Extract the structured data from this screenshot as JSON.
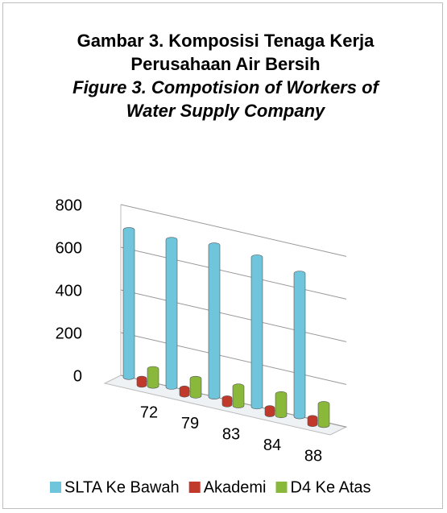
{
  "chart_data": {
    "type": "bar3d",
    "title": "Gambar 3. Komposisi Tenaga Kerja Perusahaan Air Bersih",
    "subtitle": "Figure 3. Compotision of Workers of Water Supply Company",
    "categories": [
      "72",
      "79",
      "83",
      "84",
      "88"
    ],
    "series": [
      {
        "name": "SLTA Ke Bawah",
        "color": "#6ec5dc",
        "values": [
          690,
          690,
          710,
          700,
          670
        ]
      },
      {
        "name": "Akademi",
        "color": "#c0392b",
        "values": [
          30,
          30,
          30,
          30,
          30
        ]
      },
      {
        "name": "D4 Ke Atas",
        "color": "#8ab83a",
        "values": [
          80,
          80,
          90,
          100,
          100
        ]
      }
    ],
    "ylim": [
      0,
      800
    ],
    "yticks": [
      0,
      200,
      400,
      600,
      800
    ],
    "grid": true,
    "legend": "bottom"
  }
}
